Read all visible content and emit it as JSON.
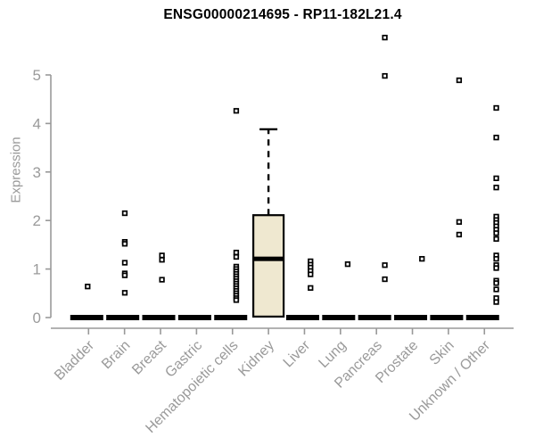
{
  "title": "ENSG00000214695 - RP11-182L21.4",
  "chart_data": {
    "type": "boxplot",
    "title": "ENSG00000214695 - RP11-182L21.4",
    "xlabel": "",
    "ylabel": "Expression",
    "ylim": [
      0,
      5.9
    ],
    "yticks": [
      0,
      1,
      2,
      3,
      4,
      5
    ],
    "grid": false,
    "legend": "none",
    "colors": {
      "axis": "#999999",
      "tick_label": "#9a9a9a",
      "box_fill": "#EFE8D0",
      "box_stroke": "#000000",
      "point": "#000000",
      "title": "#000000"
    },
    "categories": [
      {
        "label": "Bladder",
        "q1": 0,
        "median": 0,
        "q3": 0,
        "whisker_low": 0,
        "whisker_high": 0,
        "outliers": [
          0.64
        ]
      },
      {
        "label": "Brain",
        "q1": 0,
        "median": 0,
        "q3": 0,
        "whisker_low": 0,
        "whisker_high": 0,
        "outliers": [
          2.15,
          1.56,
          1.52,
          1.13,
          0.91,
          0.87,
          0.51
        ]
      },
      {
        "label": "Breast",
        "q1": 0,
        "median": 0,
        "q3": 0,
        "whisker_low": 0,
        "whisker_high": 0,
        "outliers": [
          1.28,
          1.19,
          0.78
        ]
      },
      {
        "label": "Gastric",
        "q1": 0,
        "median": 0,
        "q3": 0,
        "whisker_low": 0,
        "whisker_high": 0,
        "outliers": []
      },
      {
        "label": "Hematopoietic cells",
        "q1": 0,
        "median": 0,
        "q3": 0,
        "whisker_low": 0,
        "whisker_high": 0,
        "outliers": [
          4.26,
          1.34,
          1.25,
          1.05,
          1.0,
          0.95,
          0.9,
          0.85,
          0.8,
          0.75,
          0.7,
          0.65,
          0.6,
          0.55,
          0.5,
          0.45,
          0.4,
          0.36
        ]
      },
      {
        "label": "Kidney",
        "q1": 0.02,
        "median": 1.21,
        "q3": 2.11,
        "whisker_low": 0.02,
        "whisker_high": 3.88,
        "outliers": []
      },
      {
        "label": "Liver",
        "q1": 0,
        "median": 0,
        "q3": 0,
        "whisker_low": 0,
        "whisker_high": 0,
        "outliers": [
          1.16,
          1.09,
          1.03,
          0.96,
          0.89,
          0.61
        ]
      },
      {
        "label": "Lung",
        "q1": 0,
        "median": 0,
        "q3": 0,
        "whisker_low": 0,
        "whisker_high": 0,
        "outliers": [
          1.1
        ]
      },
      {
        "label": "Pancreas",
        "q1": 0,
        "median": 0,
        "q3": 0,
        "whisker_low": 0,
        "whisker_high": 0,
        "outliers": [
          5.77,
          4.98,
          1.08,
          0.79
        ]
      },
      {
        "label": "Prostate",
        "q1": 0,
        "median": 0,
        "q3": 0,
        "whisker_low": 0,
        "whisker_high": 0,
        "outliers": [
          1.21
        ]
      },
      {
        "label": "Skin",
        "q1": 0,
        "median": 0,
        "q3": 0,
        "whisker_low": 0,
        "whisker_high": 0,
        "outliers": [
          4.89,
          1.97,
          1.71
        ]
      },
      {
        "label": "Unknown / Other",
        "q1": 0,
        "median": 0,
        "q3": 0,
        "whisker_low": 0,
        "whisker_high": 0,
        "outliers": [
          4.32,
          3.71,
          2.87,
          2.68,
          2.08,
          2.01,
          1.95,
          1.88,
          1.81,
          1.74,
          1.62,
          1.28,
          1.21,
          1.08,
          1.02,
          0.76,
          0.71,
          0.58,
          0.4,
          0.32
        ]
      }
    ]
  }
}
